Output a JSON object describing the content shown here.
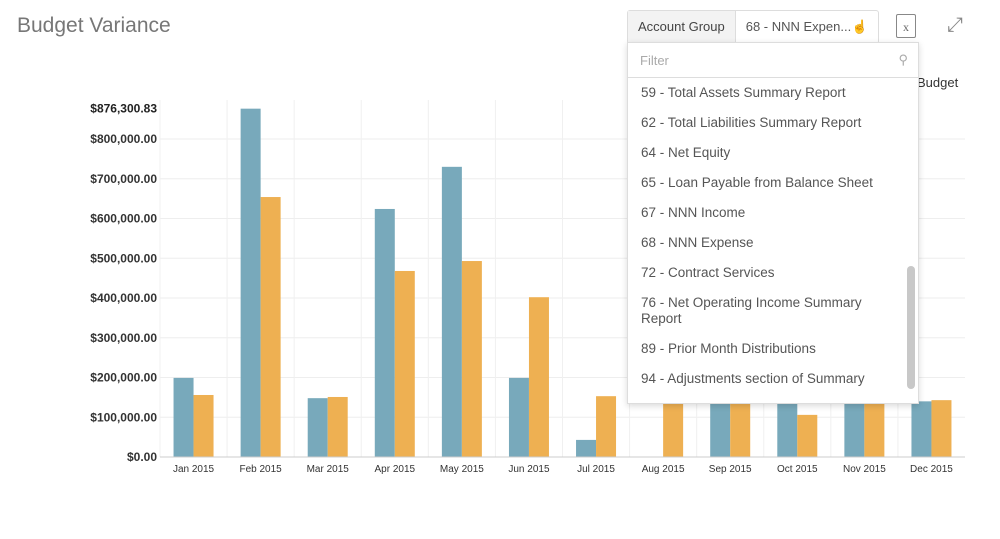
{
  "title": "Budget Variance",
  "account_group": {
    "label": "Account Group",
    "value": "68 - NNN Expen..."
  },
  "icons": {
    "excel": "excel-export-icon",
    "expand": "expand-icon",
    "search": "search-icon",
    "cursor": "hand-pointer-icon"
  },
  "excel_glyph": "x",
  "dropdown": {
    "filter_placeholder": "Filter",
    "items": [
      "59 - Total Assets Summary Report",
      "62 - Total Liabilities Summary Report",
      "64 - Net Equity",
      "65 - Loan Payable from Balance Sheet",
      "67 - NNN Income",
      "68 - NNN Expense",
      "72 - Contract Services",
      "76 - Net Operating Income Summary Report",
      "89 - Prior Month Distributions",
      "94 - Adjustments section of Summary"
    ]
  },
  "chart_data": {
    "type": "bar",
    "categories": [
      "Jan 2015",
      "Feb 2015",
      "Mar 2015",
      "Apr 2015",
      "May 2015",
      "Jun 2015",
      "Jul 2015",
      "Aug 2015",
      "Sep 2015",
      "Oct 2015",
      "Nov 2015",
      "Dec 2015"
    ],
    "series": [
      {
        "values": [
          199000,
          876300.83,
          148000,
          624000,
          730000,
          199000,
          43000,
          0,
          140000,
          140000,
          140000,
          140000
        ],
        "color": "#78a9bb"
      },
      {
        "name": "Budget",
        "values": [
          156000,
          654000,
          151000,
          468000,
          493000,
          402000,
          153000,
          145000,
          140000,
          106000,
          140000,
          143000
        ],
        "color": "#eeb052"
      }
    ],
    "yticks": [
      "$0.00",
      "$100,000.00",
      "$200,000.00",
      "$300,000.00",
      "$400,000.00",
      "$500,000.00",
      "$600,000.00",
      "$700,000.00",
      "$800,000.00"
    ],
    "ymax_label": "$876,300.83",
    "ylim": [
      0,
      876300.83
    ],
    "grid": true,
    "legend": "top-right"
  }
}
